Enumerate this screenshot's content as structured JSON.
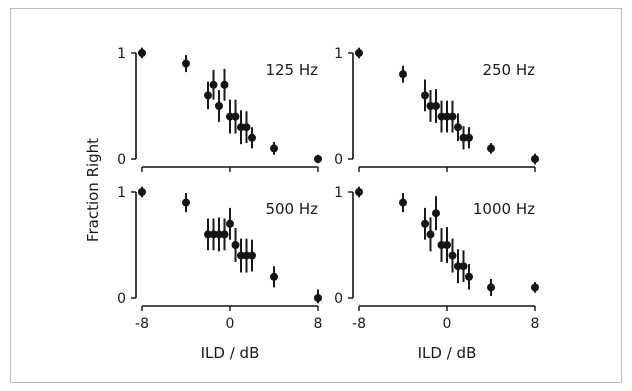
{
  "figure": {
    "ylabel": "Fraction Right",
    "xlabel": "ILD / dB"
  },
  "chart_data": [
    {
      "type": "scatter",
      "panel_label": "125 Hz",
      "xlabel": "ILD / dB",
      "ylabel": "Fraction Right",
      "xlim": [
        -8,
        8
      ],
      "ylim": [
        0,
        1
      ],
      "x_ticks": [
        "-8",
        "0",
        "8"
      ],
      "y_ticks": [
        "0",
        "1"
      ],
      "x": [
        -8,
        -4,
        -2,
        -1.5,
        -1,
        -0.5,
        0,
        0.5,
        1,
        1.5,
        2,
        4,
        8
      ],
      "y": [
        1.0,
        0.9,
        0.6,
        0.7,
        0.5,
        0.7,
        0.4,
        0.4,
        0.3,
        0.3,
        0.2,
        0.1,
        0.0
      ],
      "err": [
        0.05,
        0.08,
        0.13,
        0.14,
        0.15,
        0.15,
        0.16,
        0.16,
        0.16,
        0.15,
        0.1,
        0.06,
        0.04
      ]
    },
    {
      "type": "scatter",
      "panel_label": "250 Hz",
      "xlabel": "ILD / dB",
      "ylabel": "Fraction Right",
      "xlim": [
        -8,
        8
      ],
      "ylim": [
        0,
        1
      ],
      "x_ticks": [
        "-8",
        "0",
        "8"
      ],
      "y_ticks": [
        "0",
        "1"
      ],
      "x": [
        -8,
        -4,
        -2,
        -1.5,
        -1,
        -0.5,
        0,
        0.5,
        1,
        1.5,
        2,
        4,
        8
      ],
      "y": [
        1.0,
        0.8,
        0.6,
        0.5,
        0.5,
        0.4,
        0.4,
        0.4,
        0.3,
        0.2,
        0.2,
        0.1,
        0.0
      ],
      "err": [
        0.05,
        0.08,
        0.15,
        0.15,
        0.16,
        0.15,
        0.15,
        0.15,
        0.13,
        0.11,
        0.1,
        0.05,
        0.05
      ]
    },
    {
      "type": "scatter",
      "panel_label": "500 Hz",
      "xlabel": "ILD / dB",
      "ylabel": "Fraction Right",
      "xlim": [
        -8,
        8
      ],
      "ylim": [
        0,
        1
      ],
      "x_ticks": [
        "-8",
        "0",
        "8"
      ],
      "y_ticks": [
        "0",
        "1"
      ],
      "x": [
        -8,
        -4,
        -2,
        -1.5,
        -1,
        -0.5,
        0,
        0.5,
        1,
        1.5,
        2,
        4,
        8
      ],
      "y": [
        1.0,
        0.9,
        0.6,
        0.6,
        0.6,
        0.6,
        0.7,
        0.5,
        0.4,
        0.4,
        0.4,
        0.2,
        0.0
      ],
      "err": [
        0.05,
        0.09,
        0.15,
        0.15,
        0.16,
        0.15,
        0.15,
        0.16,
        0.16,
        0.16,
        0.15,
        0.1,
        0.08
      ]
    },
    {
      "type": "scatter",
      "panel_label": "1000 Hz",
      "xlabel": "ILD / dB",
      "ylabel": "Fraction Right",
      "xlim": [
        -8,
        8
      ],
      "ylim": [
        0,
        1
      ],
      "x_ticks": [
        "-8",
        "0",
        "8"
      ],
      "y_ticks": [
        "0",
        "1"
      ],
      "x": [
        -8,
        -4,
        -2,
        -1.5,
        -1,
        -0.5,
        0,
        0.5,
        1,
        1.5,
        2,
        4,
        8
      ],
      "y": [
        1.0,
        0.9,
        0.7,
        0.6,
        0.8,
        0.5,
        0.5,
        0.4,
        0.3,
        0.3,
        0.2,
        0.1,
        0.1
      ],
      "err": [
        0.05,
        0.09,
        0.15,
        0.16,
        0.16,
        0.16,
        0.17,
        0.16,
        0.16,
        0.15,
        0.12,
        0.08,
        0.05
      ]
    }
  ]
}
